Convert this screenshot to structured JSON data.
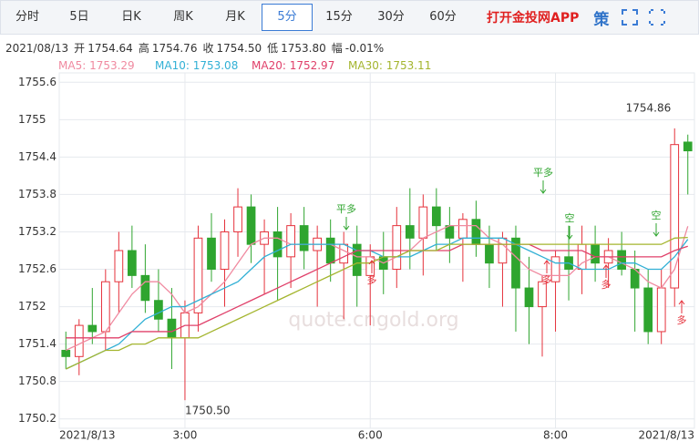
{
  "toolbar": {
    "tabs": [
      "分时",
      "5日",
      "日K",
      "周K",
      "月K",
      "5分",
      "15分",
      "30分",
      "60分"
    ],
    "active": 5,
    "app_link": "打开金投网APP",
    "strategy": "策"
  },
  "info": {
    "date": "2021/08/13",
    "items": [
      {
        "label": "开",
        "value": "1754.64"
      },
      {
        "label": "高",
        "value": "1754.76"
      },
      {
        "label": "收",
        "value": "1754.50"
      },
      {
        "label": "低",
        "value": "1753.80"
      },
      {
        "label": "幅",
        "value": "-0.01%"
      }
    ]
  },
  "chart_data": {
    "type": "candlestick",
    "legend_separator": ": ",
    "watermark": "quote.cngold.org",
    "categories": [
      "2021/8/13",
      null,
      null,
      null,
      null,
      null,
      null,
      null,
      null,
      "3:00",
      null,
      null,
      null,
      null,
      null,
      null,
      null,
      null,
      null,
      null,
      null,
      null,
      null,
      "6:00",
      null,
      null,
      null,
      null,
      null,
      null,
      null,
      null,
      null,
      null,
      null,
      null,
      null,
      "8:00",
      null,
      null,
      null,
      null,
      null,
      null,
      null,
      null,
      null,
      "2021/8/13"
    ],
    "open": [
      1751.3,
      1751.2,
      1751.7,
      1751.6,
      1752.4,
      1752.9,
      1752.5,
      1752.1,
      1751.8,
      1751.5,
      1751.9,
      1753.1,
      1752.6,
      1753.2,
      1753.6,
      1753.0,
      1753.2,
      1752.8,
      1753.3,
      1752.9,
      1753.1,
      1752.7,
      1753.0,
      1752.5,
      1752.8,
      1752.6,
      1753.3,
      1753.1,
      1753.6,
      1753.3,
      1753.1,
      1753.4,
      1753.0,
      1752.7,
      1753.1,
      1752.3,
      1752.0,
      1752.4,
      1752.8,
      1752.6,
      1753.0,
      1752.7,
      1752.9,
      1752.6,
      1752.3,
      1751.6,
      1752.3,
      1754.64
    ],
    "high": [
      1751.6,
      1751.8,
      1752.3,
      1752.6,
      1753.2,
      1753.3,
      1753.0,
      1752.6,
      1752.3,
      1752.1,
      1753.3,
      1753.5,
      1753.4,
      1753.9,
      1753.8,
      1753.4,
      1753.6,
      1753.5,
      1753.6,
      1753.3,
      1753.4,
      1753.2,
      1753.3,
      1753.0,
      1753.2,
      1753.6,
      1753.9,
      1753.8,
      1753.9,
      1753.6,
      1753.5,
      1753.7,
      1753.3,
      1753.2,
      1753.3,
      1752.8,
      1752.5,
      1752.9,
      1753.3,
      1753.3,
      1753.3,
      1753.1,
      1753.2,
      1752.9,
      1752.6,
      1752.6,
      1754.86,
      1754.76
    ],
    "low": [
      1751.0,
      1750.9,
      1751.4,
      1751.3,
      1751.9,
      1752.3,
      1751.9,
      1751.6,
      1751.0,
      1750.5,
      1751.6,
      1752.4,
      1752.0,
      1752.8,
      1752.7,
      1752.2,
      1752.1,
      1752.3,
      1752.6,
      1752.0,
      1752.4,
      1751.8,
      1752.0,
      1751.7,
      1752.2,
      1752.3,
      1752.6,
      1752.5,
      1752.9,
      1752.7,
      1752.4,
      1752.8,
      1752.3,
      1752.0,
      1751.6,
      1751.4,
      1751.2,
      1751.6,
      1752.1,
      1752.2,
      1752.4,
      1752.3,
      1752.5,
      1751.6,
      1751.4,
      1751.4,
      1752.0,
      1753.8
    ],
    "close": [
      1751.2,
      1751.7,
      1751.6,
      1752.4,
      1752.9,
      1752.5,
      1752.1,
      1751.8,
      1751.5,
      1751.9,
      1753.1,
      1752.6,
      1753.2,
      1753.6,
      1753.0,
      1753.2,
      1752.8,
      1753.3,
      1752.9,
      1753.1,
      1752.7,
      1753.0,
      1752.5,
      1752.8,
      1752.6,
      1753.3,
      1753.1,
      1753.6,
      1753.3,
      1753.1,
      1753.4,
      1753.0,
      1752.7,
      1753.1,
      1752.3,
      1752.0,
      1752.4,
      1752.8,
      1752.6,
      1753.0,
      1752.7,
      1752.9,
      1752.6,
      1752.3,
      1751.6,
      1752.3,
      1754.6,
      1754.5
    ],
    "up_color": "#e5323c",
    "down_color": "#2fa52f",
    "series": [
      {
        "name": "MA5",
        "color": "#f08aa0",
        "values": [
          1751.3,
          1751.4,
          1751.5,
          1751.6,
          1751.9,
          1752.2,
          1752.4,
          1752.4,
          1752.2,
          1751.9,
          1752.0,
          1752.2,
          1752.4,
          1752.7,
          1753.0,
          1753.1,
          1753.1,
          1753.0,
          1753.0,
          1753.0,
          1753.0,
          1752.9,
          1752.8,
          1752.8,
          1752.7,
          1752.8,
          1752.9,
          1753.1,
          1753.2,
          1753.3,
          1753.3,
          1753.3,
          1753.1,
          1753.0,
          1752.8,
          1752.6,
          1752.5,
          1752.5,
          1752.5,
          1752.7,
          1752.8,
          1752.8,
          1752.7,
          1752.6,
          1752.4,
          1752.3,
          1752.6,
          1753.29
        ]
      },
      {
        "name": "MA10",
        "color": "#31b0d5",
        "values": [
          1751.0,
          1751.1,
          1751.2,
          1751.3,
          1751.4,
          1751.6,
          1751.8,
          1751.9,
          1752.0,
          1752.0,
          1752.1,
          1752.2,
          1752.3,
          1752.4,
          1752.6,
          1752.8,
          1752.9,
          1753.0,
          1753.0,
          1753.0,
          1753.0,
          1753.0,
          1752.9,
          1752.9,
          1752.8,
          1752.8,
          1752.8,
          1752.9,
          1753.0,
          1753.0,
          1753.1,
          1753.1,
          1753.1,
          1753.1,
          1753.0,
          1752.9,
          1752.8,
          1752.7,
          1752.7,
          1752.6,
          1752.6,
          1752.6,
          1752.7,
          1752.7,
          1752.6,
          1752.6,
          1752.8,
          1753.08
        ]
      },
      {
        "name": "MA20",
        "color": "#e0406a",
        "values": [
          1751.5,
          1751.5,
          1751.5,
          1751.5,
          1751.5,
          1751.6,
          1751.6,
          1751.6,
          1751.6,
          1751.7,
          1751.7,
          1751.8,
          1751.9,
          1752.0,
          1752.1,
          1752.2,
          1752.3,
          1752.4,
          1752.5,
          1752.6,
          1752.7,
          1752.8,
          1752.9,
          1752.9,
          1752.9,
          1752.9,
          1752.9,
          1752.9,
          1752.9,
          1752.9,
          1753.0,
          1753.0,
          1753.0,
          1753.0,
          1753.0,
          1753.0,
          1752.9,
          1752.9,
          1752.9,
          1752.9,
          1752.8,
          1752.8,
          1752.8,
          1752.8,
          1752.8,
          1752.8,
          1752.9,
          1752.97
        ]
      },
      {
        "name": "MA30",
        "color": "#a4b52e",
        "values": [
          1751.0,
          1751.1,
          1751.2,
          1751.3,
          1751.3,
          1751.4,
          1751.4,
          1751.5,
          1751.5,
          1751.5,
          1751.5,
          1751.6,
          1751.7,
          1751.8,
          1751.9,
          1752.0,
          1752.1,
          1752.2,
          1752.3,
          1752.4,
          1752.5,
          1752.6,
          1752.7,
          1752.7,
          1752.8,
          1752.8,
          1752.9,
          1752.9,
          1752.9,
          1753.0,
          1753.0,
          1753.0,
          1753.0,
          1753.0,
          1753.0,
          1753.0,
          1753.0,
          1753.0,
          1753.0,
          1753.0,
          1753.0,
          1753.0,
          1753.0,
          1753.0,
          1753.0,
          1753.0,
          1753.1,
          1753.11
        ]
      }
    ],
    "ylim": [
      1750.05,
      1755.75
    ],
    "yticks": [
      1750.2,
      1750.8,
      1751.4,
      1752,
      1752.6,
      1753.2,
      1753.8,
      1754.4,
      1755,
      1755.6
    ],
    "grid": true,
    "extremes": [
      {
        "value": 1754.86,
        "label": "1754.86"
      },
      {
        "value": 1750.5,
        "label": "1750.50"
      }
    ],
    "annotations": [
      "平多",
      "多",
      "平多",
      "多",
      "空",
      "多",
      "空",
      "多"
    ]
  }
}
